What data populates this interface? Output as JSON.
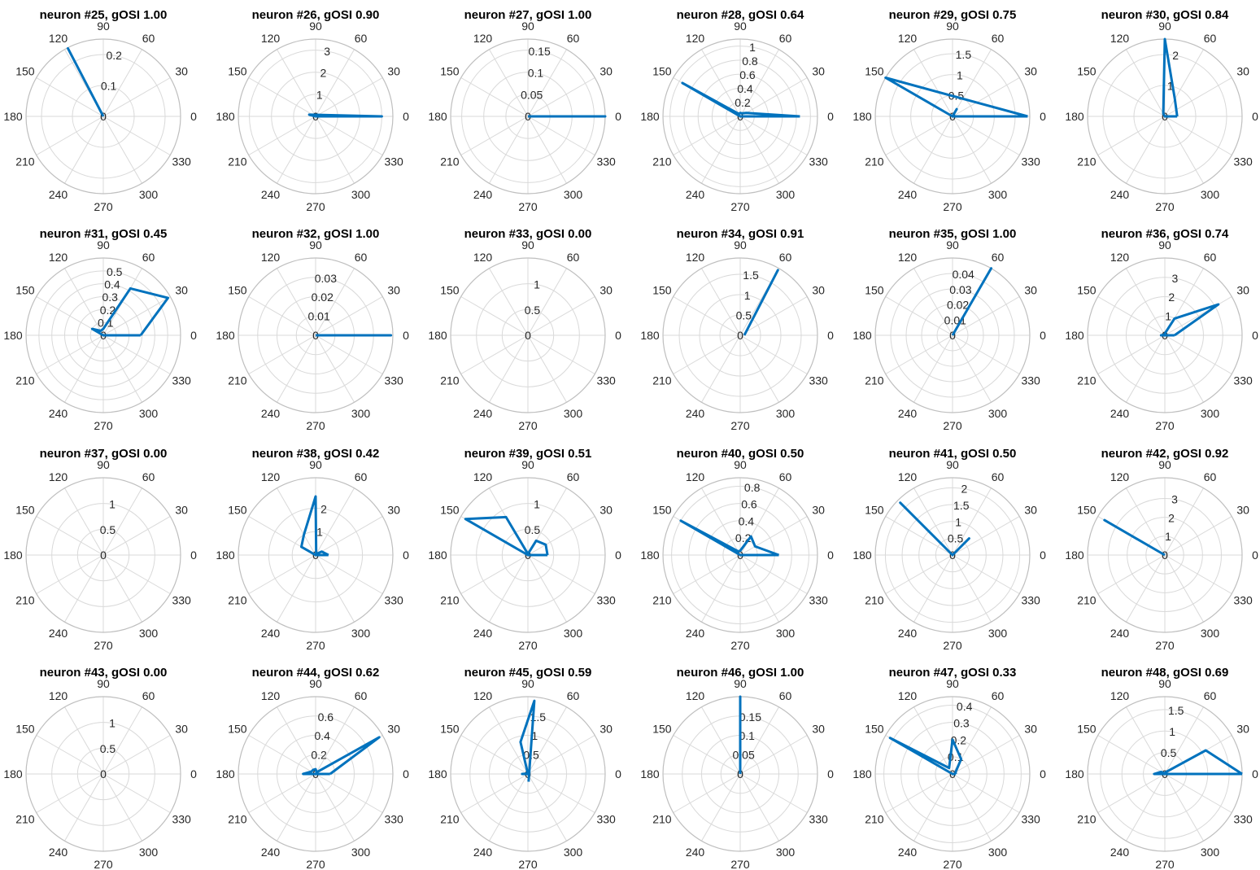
{
  "figure": {
    "title": "",
    "line_color": "#0072bd",
    "grid_color": "#d9d9d9",
    "outer_circle_color": "#bfbfbf",
    "text_color": "#262626"
  },
  "angle_ticks": [
    "0",
    "30",
    "60",
    "90",
    "120",
    "150",
    "180",
    "210",
    "240",
    "270",
    "300",
    "330"
  ],
  "chart_data": [
    {
      "type": "polar",
      "title": "neuron #25, gOSI 1.00",
      "rmax": 0.25,
      "rticks": [
        0.1,
        0.2
      ],
      "rtick_labels": [
        "0",
        "0.1",
        "0.2"
      ],
      "theta_deg": [
        0,
        117.5,
        0
      ],
      "r": [
        0,
        0.248,
        0
      ]
    },
    {
      "type": "polar",
      "title": "neuron #26, gOSI 0.90",
      "rmax": 3.5,
      "rticks": [
        1,
        2,
        3
      ],
      "rtick_labels": [
        "0",
        "1",
        "2",
        "3"
      ],
      "theta_deg": [
        0,
        0,
        165,
        0
      ],
      "r": [
        0,
        3.0,
        0.3,
        0
      ]
    },
    {
      "type": "polar",
      "title": "neuron #27, gOSI 1.00",
      "rmax": 0.175,
      "rticks": [
        0.05,
        0.1,
        0.15
      ],
      "rtick_labels": [
        "0",
        "0.05",
        "0.1",
        "0.15"
      ],
      "theta_deg": [
        0,
        0,
        0
      ],
      "r": [
        0,
        0.175,
        0
      ]
    },
    {
      "type": "polar",
      "title": "neuron #28, gOSI 0.64",
      "rmax": 1.1,
      "rticks": [
        0.2,
        0.4,
        0.6,
        0.8,
        1
      ],
      "rtick_labels": [
        "0",
        "0.2",
        "0.4",
        "0.6",
        "0.8",
        "1"
      ],
      "theta_deg": [
        0,
        30,
        60,
        90,
        120,
        150,
        180,
        210,
        240,
        270,
        300,
        330,
        0
      ],
      "r": [
        0.85,
        0.1,
        0.05,
        0.05,
        0.04,
        0.95,
        0,
        0,
        0,
        0,
        0,
        0,
        0.85
      ]
    },
    {
      "type": "polar",
      "title": "neuron #29, gOSI 0.75",
      "rmax": 1.85,
      "rticks": [
        0.5,
        1,
        1.5
      ],
      "rtick_labels": [
        "0",
        "0.5",
        "1",
        "1.5"
      ],
      "theta_deg": [
        0,
        30,
        60,
        90,
        150,
        0
      ],
      "r": [
        1.8,
        0,
        0.2,
        0,
        1.85,
        1.8
      ]
    },
    {
      "type": "polar",
      "title": "neuron #30, gOSI 0.84",
      "rmax": 2.5,
      "rticks": [
        1,
        2
      ],
      "rtick_labels": [
        "0",
        "1",
        "2"
      ],
      "theta_deg": [
        0,
        60,
        90,
        120,
        180,
        0
      ],
      "r": [
        0.4,
        0.65,
        2.55,
        0.1,
        0,
        0.4
      ]
    },
    {
      "type": "polar",
      "title": "neuron #31, gOSI 0.45",
      "rmax": 0.6,
      "rticks": [
        0.1,
        0.2,
        0.3,
        0.4,
        0.5
      ],
      "rtick_labels": [
        "0",
        "0.1",
        "0.2",
        "0.3",
        "0.4",
        "0.5"
      ],
      "theta_deg": [
        0,
        30,
        60,
        90,
        120,
        150,
        180,
        210,
        240,
        270,
        300,
        330,
        0
      ],
      "r": [
        0.29,
        0.58,
        0.42,
        0.05,
        0.04,
        0.1,
        0,
        0,
        0,
        0,
        0,
        0,
        0.29
      ]
    },
    {
      "type": "polar",
      "title": "neuron #32, gOSI 1.00",
      "rmax": 0.04,
      "rticks": [
        0.01,
        0.02,
        0.03
      ],
      "rtick_labels": [
        "0",
        "0.01",
        "0.02",
        "0.03"
      ],
      "theta_deg": [
        0,
        0,
        0
      ],
      "r": [
        0,
        0.039,
        0
      ]
    },
    {
      "type": "polar",
      "title": "neuron #33, gOSI 0.00",
      "rmax": 1.5,
      "rticks": [
        0.5,
        1
      ],
      "rtick_labels": [
        "0",
        "0.5",
        "1"
      ],
      "theta_deg": [],
      "r": []
    },
    {
      "type": "polar",
      "title": "neuron #34, gOSI 0.91",
      "rmax": 1.9,
      "rticks": [
        0.5,
        1,
        1.5
      ],
      "rtick_labels": [
        "0",
        "0.5",
        "1",
        "1.5"
      ],
      "theta_deg": [
        0,
        60,
        0
      ],
      "r": [
        0.1,
        1.85,
        0.1
      ]
    },
    {
      "type": "polar",
      "title": "neuron #35, gOSI 1.00",
      "rmax": 0.05,
      "rticks": [
        0.01,
        0.02,
        0.03,
        0.04
      ],
      "rtick_labels": [
        "0",
        "0.01",
        "0.02",
        "0.03",
        "0.04"
      ],
      "theta_deg": [
        0,
        60,
        0
      ],
      "r": [
        0,
        0.05,
        0
      ]
    },
    {
      "type": "polar",
      "title": "neuron #36, gOSI 0.74",
      "rmax": 4,
      "rticks": [
        1,
        2,
        3
      ],
      "rtick_labels": [
        "0",
        "1",
        "2",
        "3"
      ],
      "theta_deg": [
        0,
        30,
        60,
        150,
        180,
        0
      ],
      "r": [
        0.5,
        3.2,
        1.0,
        0.05,
        0.2,
        0.5
      ]
    },
    {
      "type": "polar",
      "title": "neuron #37, gOSI 0.00",
      "rmax": 1.5,
      "rticks": [
        0.5,
        1
      ],
      "rtick_labels": [
        "0",
        "0.5",
        "1"
      ],
      "theta_deg": [],
      "r": []
    },
    {
      "type": "polar",
      "title": "neuron #38, gOSI 0.42",
      "rmax": 3.3,
      "rticks": [
        1,
        2
      ],
      "rtick_labels": [
        "0",
        "1",
        "2"
      ],
      "theta_deg": [
        0,
        30,
        60,
        90,
        120,
        150,
        180,
        210,
        240,
        270,
        300,
        330,
        0
      ],
      "r": [
        0.55,
        0.3,
        0.05,
        2.5,
        1.0,
        0.7,
        0,
        0,
        0,
        0,
        0,
        0,
        0.55
      ]
    },
    {
      "type": "polar",
      "title": "neuron #39, gOSI 0.51",
      "rmax": 1.5,
      "rticks": [
        0.5,
        1
      ],
      "rtick_labels": [
        "0",
        "0.5",
        "1"
      ],
      "theta_deg": [
        0,
        30,
        60,
        90,
        120,
        150,
        180,
        210,
        240,
        270,
        300,
        330,
        0
      ],
      "r": [
        0.38,
        0.4,
        0.32,
        0.02,
        0.85,
        1.4,
        0,
        0,
        0,
        0,
        0,
        0,
        0.38
      ]
    },
    {
      "type": "polar",
      "title": "neuron #40, gOSI 0.50",
      "rmax": 0.9,
      "rticks": [
        0.2,
        0.4,
        0.6,
        0.8
      ],
      "rtick_labels": [
        "0",
        "0.2",
        "0.4",
        "0.6",
        "0.8"
      ],
      "theta_deg": [
        0,
        30,
        60,
        90,
        120,
        150,
        180,
        210,
        240,
        270,
        300,
        330,
        0
      ],
      "r": [
        0.45,
        0.2,
        0.25,
        0.05,
        0.05,
        0.8,
        0,
        0,
        0,
        0,
        0,
        0,
        0.45
      ]
    },
    {
      "type": "polar",
      "title": "neuron #41, gOSI 0.50",
      "rmax": 2.3,
      "rticks": [
        0.5,
        1,
        1.5,
        2
      ],
      "rtick_labels": [
        "0",
        "0.5",
        "1",
        "1.5",
        "2"
      ],
      "theta_deg": [
        0,
        45,
        90,
        135,
        0
      ],
      "r": [
        0,
        0.7,
        0,
        2.2,
        0
      ]
    },
    {
      "type": "polar",
      "title": "neuron #42, gOSI 0.92",
      "rmax": 4.1,
      "rticks": [
        1,
        2,
        3
      ],
      "rtick_labels": [
        "0",
        "1",
        "2",
        "3"
      ],
      "theta_deg": [
        0,
        150,
        0
      ],
      "r": [
        0,
        3.7,
        0
      ]
    },
    {
      "type": "polar",
      "title": "neuron #43, gOSI 0.00",
      "rmax": 1.5,
      "rticks": [
        0.5,
        1
      ],
      "rtick_labels": [
        "0",
        "0.5",
        "1"
      ],
      "theta_deg": [],
      "r": []
    },
    {
      "type": "polar",
      "title": "neuron #44, gOSI 0.62",
      "rmax": 0.8,
      "rticks": [
        0.2,
        0.4,
        0.6
      ],
      "rtick_labels": [
        "0",
        "0.2",
        "0.4",
        "0.6"
      ],
      "theta_deg": [
        0,
        30,
        60,
        90,
        120,
        150,
        180,
        210,
        240,
        270,
        300,
        330,
        0
      ],
      "r": [
        0.15,
        0.76,
        0.02,
        0.05,
        0.05,
        0.05,
        0.13,
        0,
        0,
        0,
        0,
        0,
        0.15
      ]
    },
    {
      "type": "polar",
      "title": "neuron #45, gOSI 0.59",
      "rmax": 2.0,
      "rticks": [
        0.5,
        1,
        1.5
      ],
      "rtick_labels": [
        "0",
        "0.5",
        "1",
        "1.5"
      ],
      "theta_deg": [
        0,
        30,
        60,
        90,
        120,
        150,
        180,
        210,
        240,
        270,
        300,
        330,
        0
      ],
      "r": [
        0.05,
        0.02,
        0.02,
        0.02,
        0.02,
        0.02,
        0.15,
        0,
        0,
        0,
        0,
        0,
        0.05
      ],
      "extra": {
        "theta_deg": [
          -85,
          85,
          103,
          102
        ],
        "r": [
          0.2,
          1.9,
          0.85,
          0.0
        ]
      }
    },
    {
      "type": "polar",
      "title": "neuron #46, gOSI 1.00",
      "rmax": 0.2,
      "rticks": [
        0.05,
        0.1,
        0.15
      ],
      "rtick_labels": [
        "0",
        "0.05",
        "0.1",
        "0.15"
      ],
      "theta_deg": [
        90,
        90,
        90
      ],
      "r": [
        0,
        0.2,
        0
      ]
    },
    {
      "type": "polar",
      "title": "neuron #47, gOSI 0.33",
      "rmax": 0.45,
      "rticks": [
        0.1,
        0.2,
        0.3,
        0.4
      ],
      "rtick_labels": [
        "0",
        "0.1",
        "0.2",
        "0.3",
        "0.4"
      ],
      "theta_deg": [
        0,
        30,
        60,
        90,
        120,
        150,
        180,
        210,
        240,
        270,
        300,
        330,
        0
      ],
      "r": [
        0.02,
        0.02,
        0.1,
        0.2,
        0.04,
        0.42,
        0,
        0,
        0,
        0,
        0,
        0,
        0.02
      ]
    },
    {
      "type": "polar",
      "title": "neuron #48, gOSI 0.69",
      "rmax": 1.8,
      "rticks": [
        0.5,
        1,
        1.5
      ],
      "rtick_labels": [
        "0",
        "0.5",
        "1",
        "1.5"
      ],
      "theta_deg": [
        0,
        30,
        60,
        90,
        120,
        150,
        180,
        210,
        240,
        270,
        300,
        330,
        0
      ],
      "r": [
        1.85,
        1.1,
        0.05,
        0.02,
        0.02,
        0.1,
        0.25,
        0,
        0,
        0,
        0,
        0,
        1.85
      ]
    }
  ]
}
